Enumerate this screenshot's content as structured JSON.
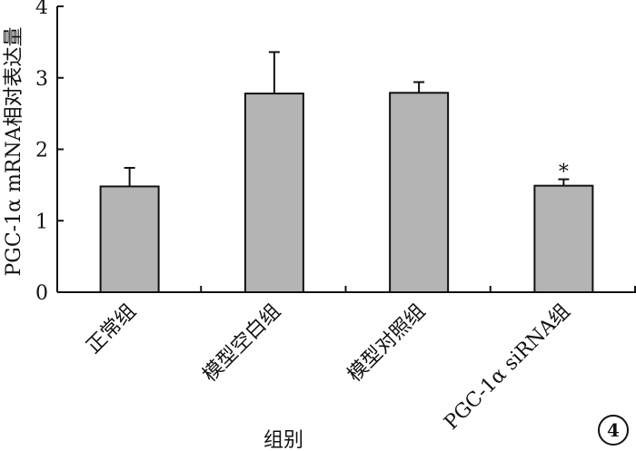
{
  "chart_data": {
    "type": "bar",
    "title": "",
    "xlabel": "组别",
    "ylabel": "PGC-1α mRNA相对表达量",
    "ylim": [
      0,
      4
    ],
    "yticks": [
      "0",
      "1",
      "2",
      "3",
      "4"
    ],
    "categories": [
      "正常组",
      "模型空白组",
      "模型对照组",
      "PGC-1α siRNA组"
    ],
    "values": [
      1.48,
      2.78,
      2.79,
      1.49
    ],
    "errors": [
      0.26,
      0.58,
      0.15,
      0.09
    ],
    "annotations": [
      "",
      "",
      "",
      "*"
    ],
    "bar_color": "#b4b4b4",
    "grid": false,
    "legend": "none"
  },
  "figure_badge": "4"
}
